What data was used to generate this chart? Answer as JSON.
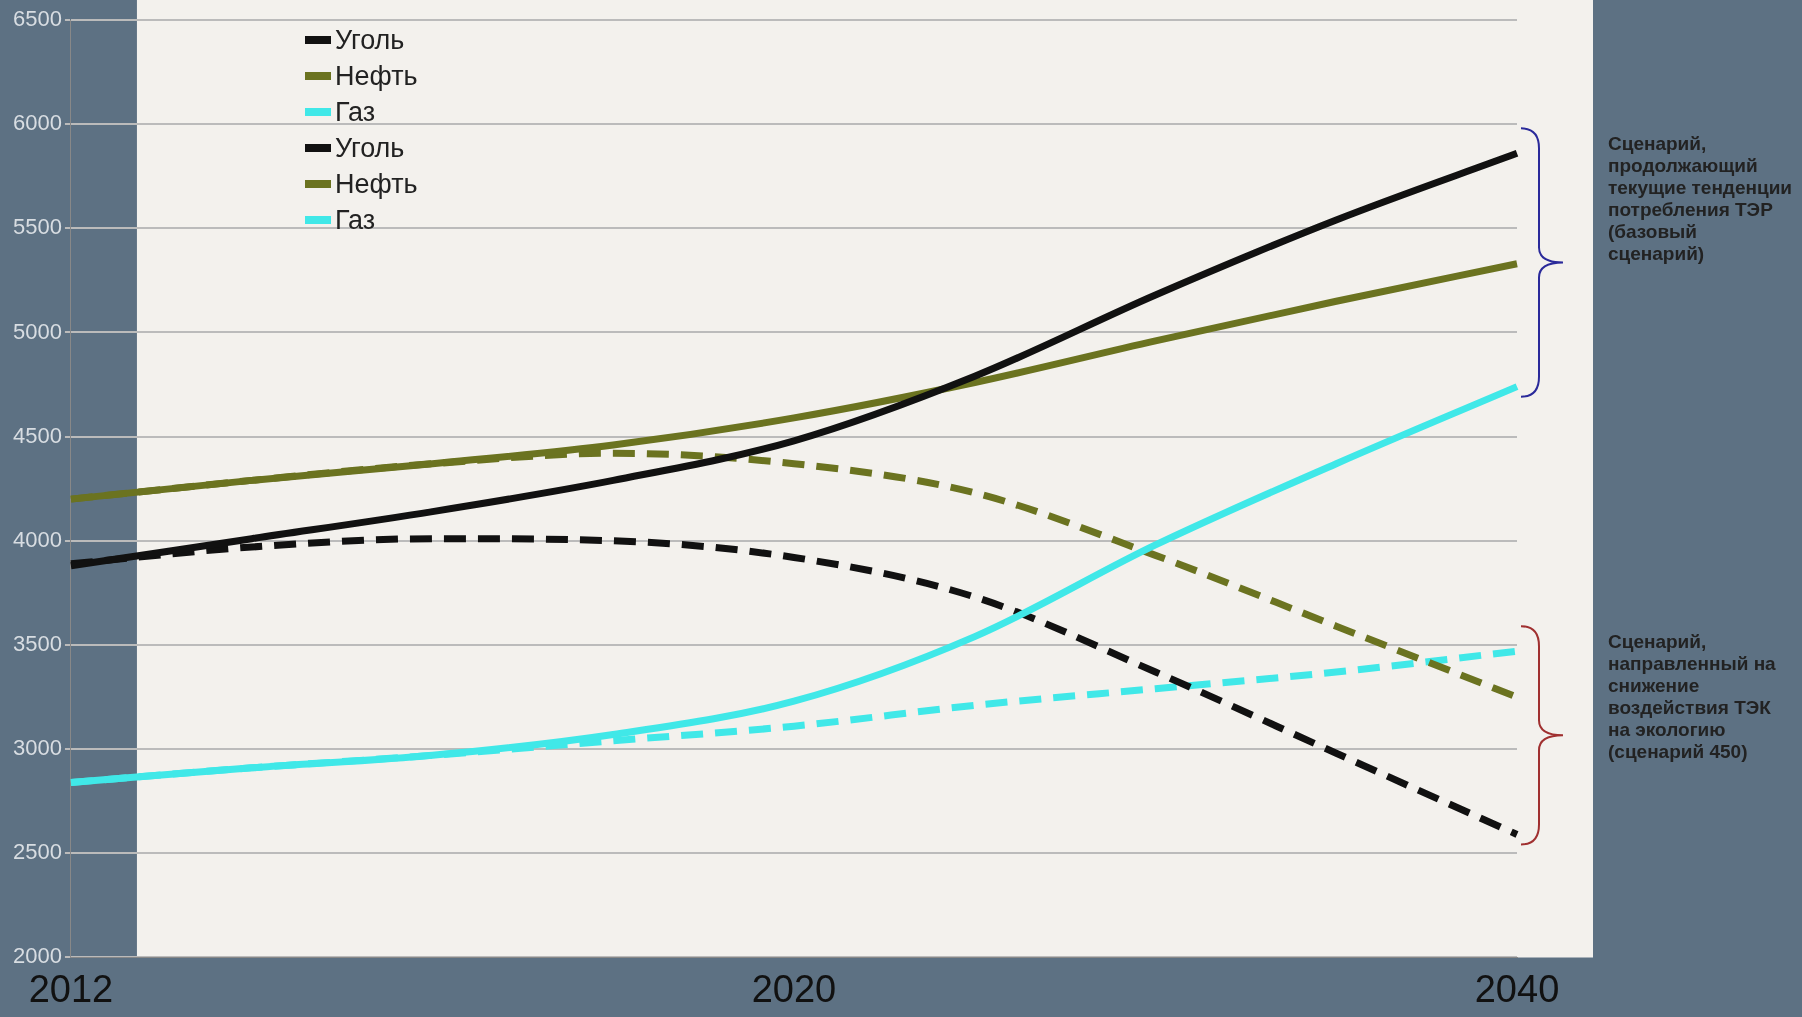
{
  "chart_data": {
    "type": "line",
    "categories": [
      "2012",
      null,
      null,
      null,
      "2020",
      null,
      null,
      null,
      "2040"
    ],
    "ylim": [
      2000,
      6500
    ],
    "yticks": [
      2000,
      2500,
      3000,
      3500,
      4000,
      4500,
      5000,
      5500,
      6000,
      6500
    ],
    "grid": "y",
    "legend": "top left",
    "marker": "none",
    "series": [
      {
        "name": "Уголь",
        "color": "#111111",
        "line_style": "solid",
        "values": [
          3880,
          4010,
          4140,
          4290,
          4480,
          4790,
          5180,
          5540,
          5860
        ]
      },
      {
        "name": "Нефть",
        "color": "#6b7320",
        "line_style": "solid",
        "values": [
          4200,
          4290,
          4370,
          4460,
          4590,
          4760,
          4960,
          5150,
          5330
        ]
      },
      {
        "name": "Газ",
        "color": "#40e8e8",
        "line_style": "solid",
        "values": [
          2840,
          2910,
          2970,
          3070,
          3230,
          3540,
          3980,
          4370,
          4740
        ]
      },
      {
        "name": "Уголь",
        "color": "#111111",
        "line_style": "dashed",
        "values": [
          3890,
          3970,
          4010,
          4000,
          3920,
          3730,
          3370,
          2980,
          2590
        ]
      },
      {
        "name": "Нефть",
        "color": "#6b7320",
        "line_style": "dashed",
        "values": [
          4200,
          4290,
          4370,
          4420,
          4370,
          4230,
          3930,
          3590,
          3250
        ]
      },
      {
        "name": "Газ",
        "color": "#40e8e8",
        "line_style": "dashed",
        "values": [
          2840,
          2910,
          2970,
          3040,
          3110,
          3210,
          3290,
          3370,
          3470
        ]
      }
    ],
    "annotations": [
      "Сценарий, продолжающий текущие тенденции потребления ТЭР (базовый сценарий)",
      "Сценарий, направленный на снижение воздействия ТЭК на экологию (сценарий 450)"
    ]
  }
}
